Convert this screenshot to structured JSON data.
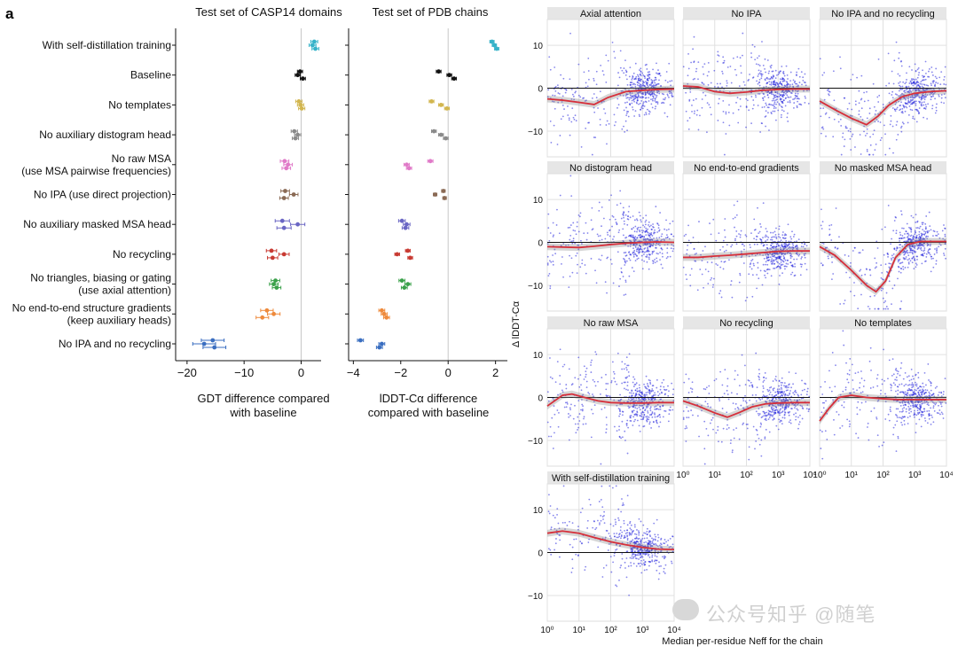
{
  "panel_letter": "a",
  "watermark": "公众号知乎 @随笔",
  "chart_data": [
    {
      "type": "scatter",
      "subtype": "dot-errorbar",
      "title": "Test set of CASP14 domains",
      "xlabel": "GDT difference compared\nwith baseline",
      "xlim": [
        -22,
        3.5
      ],
      "xticks": [
        -20,
        -10,
        0
      ],
      "xtick_labels": [
        "−20",
        "−10",
        "0"
      ],
      "categories": [
        "With self-distillation training",
        "Baseline",
        "No templates",
        "No auxiliary distogram head",
        "No raw MSA\n(use MSA pairwise frequencies)",
        "No IPA (use direct projection)",
        "No auxiliary masked MSA head",
        "No recycling",
        "No triangles, biasing or gating\n(use axial attention)",
        "No end-to-end structure gradients\n(keep auxiliary heads)",
        "No IPA and no recycling"
      ],
      "colors": [
        "#37b3c9",
        "#111111",
        "#d2b64f",
        "#8a8a8a",
        "#e07ac8",
        "#8a6a55",
        "#6a66c4",
        "#c83a32",
        "#3aa14a",
        "#ee8a3c",
        "#3a6ec0"
      ],
      "points": [
        [
          2.3,
          2.0,
          2.5
        ],
        [
          -0.2,
          -0.6,
          0.3
        ],
        [
          -0.4,
          -0.1,
          0.1
        ],
        [
          -1.2,
          -0.6,
          -1.0
        ],
        [
          -2.9,
          -2.3,
          -2.6
        ],
        [
          -2.8,
          -1.3,
          -3.0
        ],
        [
          -3.3,
          -0.6,
          -3.0
        ],
        [
          -5.2,
          -3.0,
          -5.0
        ],
        [
          -4.5,
          -4.8,
          -4.3
        ],
        [
          -6.0,
          -4.8,
          -6.8
        ],
        [
          -15.5,
          -17.0,
          -15.2
        ]
      ],
      "err": [
        1.2,
        0.9,
        1.1,
        1.1,
        1.5,
        1.5,
        2.5,
        1.8,
        1.5,
        2.2,
        4.0
      ]
    },
    {
      "type": "scatter",
      "subtype": "dot-errorbar",
      "title": "Test set of PDB chains",
      "xlabel": "lDDT-Cα difference\ncompared with baseline",
      "xlim": [
        -4.2,
        2.5
      ],
      "xticks": [
        -4,
        -2,
        0,
        2
      ],
      "xtick_labels": [
        "−4",
        "−2",
        "0",
        "2"
      ],
      "points": [
        [
          1.85,
          1.95,
          2.05
        ],
        [
          -0.4,
          0.05,
          0.25
        ],
        [
          -0.7,
          -0.3,
          -0.05
        ],
        [
          -0.6,
          -0.3,
          -0.1
        ],
        [
          -0.75,
          -1.75,
          -1.65
        ],
        [
          -0.2,
          -0.55,
          -0.15
        ],
        [
          -1.95,
          -1.75,
          -1.8
        ],
        [
          -1.7,
          -2.15,
          -1.6
        ],
        [
          -1.95,
          -1.7,
          -1.85
        ],
        [
          -2.8,
          -2.7,
          -2.6
        ],
        [
          -3.7,
          -2.8,
          -2.9
        ]
      ],
      "err": [
        0.18,
        0.2,
        0.2,
        0.2,
        0.22,
        0.15,
        0.28,
        0.2,
        0.25,
        0.25,
        0.25
      ]
    },
    {
      "type": "scatter",
      "subtype": "small-multiples",
      "ylabel": "Δ lDDT-Cα",
      "xlabel": "Median per-residue Neff for the chain",
      "x_scale": "log",
      "xlim": [
        1,
        10000
      ],
      "ylim": [
        -16,
        16
      ],
      "yticks": [
        -10,
        0,
        10
      ],
      "ytick_labels": [
        "−10",
        "0",
        "10"
      ],
      "xtick_labels": [
        "10⁰",
        "10¹",
        "10²",
        "10³",
        "10⁴"
      ],
      "point_color": "#2222dd",
      "trend_color": "#d62f3a",
      "panels": [
        {
          "title": "Axial attention",
          "trend_x": [
            1,
            3,
            10,
            30,
            80,
            300,
            1000,
            3000,
            10000
          ],
          "trend_y": [
            -2.5,
            -2.8,
            -3.3,
            -3.8,
            -2.2,
            -0.8,
            -0.5,
            -0.3,
            -0.2
          ]
        },
        {
          "title": "No IPA",
          "trend_x": [
            1,
            3,
            10,
            30,
            100,
            300,
            1000,
            3000,
            10000
          ],
          "trend_y": [
            0.5,
            0.3,
            -0.8,
            -1.2,
            -0.9,
            -0.5,
            -0.3,
            -0.2,
            -0.2
          ]
        },
        {
          "title": "No IPA and no recycling",
          "trend_x": [
            1,
            3,
            10,
            30,
            70,
            150,
            400,
            1000,
            3000,
            10000
          ],
          "trend_y": [
            -3.0,
            -5.0,
            -7.0,
            -8.5,
            -6.5,
            -4.0,
            -2.0,
            -1.2,
            -0.8,
            -0.6
          ]
        },
        {
          "title": "No distogram head",
          "trend_x": [
            1,
            3,
            10,
            30,
            100,
            300,
            1000,
            3000,
            10000
          ],
          "trend_y": [
            -1.0,
            -1.1,
            -1.2,
            -0.9,
            -0.5,
            -0.2,
            0.0,
            0.1,
            0.0
          ]
        },
        {
          "title": "No end-to-end gradients",
          "trend_x": [
            1,
            3,
            10,
            30,
            100,
            300,
            1000,
            3000,
            10000
          ],
          "trend_y": [
            -3.5,
            -3.5,
            -3.2,
            -3.0,
            -2.7,
            -2.4,
            -2.1,
            -2.0,
            -2.0
          ]
        },
        {
          "title": "No masked MSA head",
          "trend_x": [
            1,
            3,
            10,
            30,
            60,
            120,
            250,
            600,
            1500,
            10000
          ],
          "trend_y": [
            -1.0,
            -3.0,
            -6.5,
            -10.0,
            -11.5,
            -9.0,
            -3.5,
            -0.5,
            0.2,
            0.2
          ]
        },
        {
          "title": "No raw MSA",
          "trend_x": [
            1,
            3,
            6,
            15,
            40,
            100,
            300,
            1000,
            3000,
            10000
          ],
          "trend_y": [
            -2.0,
            0.5,
            0.8,
            0.0,
            -0.8,
            -1.2,
            -1.3,
            -1.3,
            -1.2,
            -1.2
          ]
        },
        {
          "title": "No recycling",
          "trend_x": [
            1,
            3,
            10,
            25,
            60,
            150,
            400,
            1000,
            3000,
            10000
          ],
          "trend_y": [
            -0.8,
            -2.0,
            -3.6,
            -4.6,
            -3.5,
            -2.2,
            -1.5,
            -1.3,
            -1.2,
            -1.2
          ]
        },
        {
          "title": "No templates",
          "trend_x": [
            1,
            2,
            4,
            10,
            30,
            100,
            300,
            1000,
            3000,
            10000
          ],
          "trend_y": [
            -5.5,
            -2.5,
            0.0,
            0.5,
            0.0,
            -0.3,
            -0.5,
            -0.5,
            -0.5,
            -0.5
          ]
        },
        {
          "title": "With self-distillation training",
          "trend_x": [
            1,
            3,
            10,
            30,
            100,
            300,
            1000,
            3000,
            10000
          ],
          "trend_y": [
            4.5,
            5.0,
            4.5,
            3.5,
            2.5,
            1.8,
            1.2,
            0.8,
            0.7
          ]
        }
      ]
    }
  ]
}
